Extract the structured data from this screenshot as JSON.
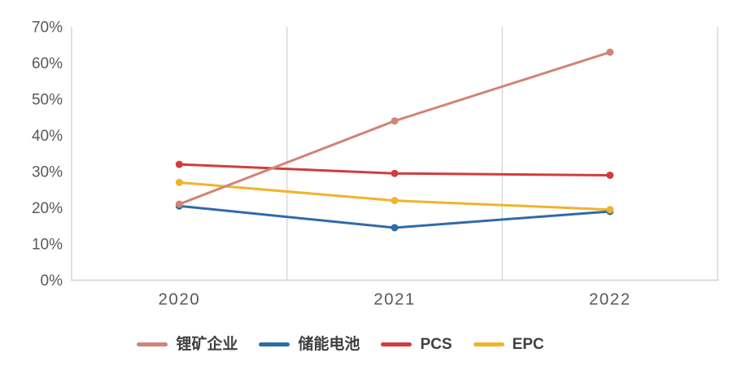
{
  "chart_data": {
    "type": "line",
    "title": "",
    "xlabel": "",
    "ylabel": "",
    "categories": [
      "2020",
      "2021",
      "2022"
    ],
    "series": [
      {
        "name": "锂矿企业",
        "key": "lithium-miners",
        "color": "#D08477",
        "values": [
          21,
          44,
          63
        ]
      },
      {
        "name": "储能电池",
        "key": "ess-battery",
        "color": "#2E6BA8",
        "values": [
          20.5,
          14.5,
          19
        ]
      },
      {
        "name": "PCS",
        "key": "pcs",
        "color": "#D23C3C",
        "values": [
          32,
          29.5,
          29
        ]
      },
      {
        "name": "EPC",
        "key": "epc",
        "color": "#F0B42A",
        "values": [
          27,
          22,
          19.5
        ]
      }
    ],
    "ylim": [
      0,
      70
    ],
    "y_tick_step": 10,
    "y_tick_labels": [
      "0%",
      "10%",
      "20%",
      "30%",
      "40%",
      "50%",
      "60%",
      "70%"
    ],
    "x_tick_labels": [
      "2020",
      "2021",
      "2022"
    ],
    "grid": "vertical-only",
    "legend_position": "bottom"
  },
  "axis": {
    "tick_color": "#595959",
    "grid_color": "#D9D9D9",
    "axis_line_color": "#D6D6D6"
  }
}
